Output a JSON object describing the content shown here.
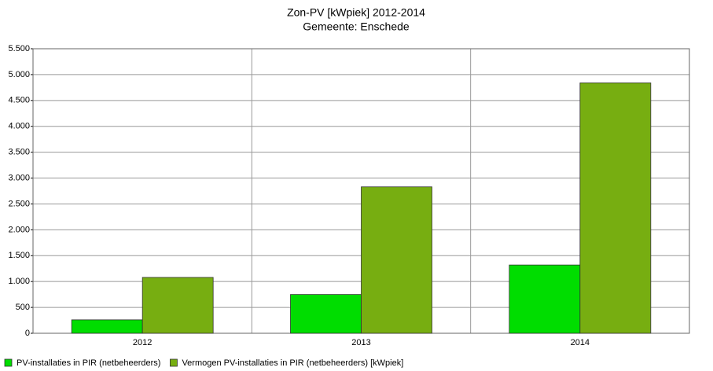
{
  "chart_data": {
    "type": "bar",
    "title": "Zon-PV [kWpiek] 2012-2014",
    "subtitle": "Gemeente: Enschede",
    "categories": [
      "2012",
      "2013",
      "2014"
    ],
    "series": [
      {
        "name": "PV-installaties in PIR (netbeheerders)",
        "color": "#00dd00",
        "values": [
          260,
          750,
          1320
        ]
      },
      {
        "name": "Vermogen PV-installaties in PIR (netbeheerders) [kWpiek]",
        "color": "#77ae11",
        "values": [
          1080,
          2830,
          4840
        ]
      }
    ],
    "ylim": [
      0,
      5500
    ],
    "yticks": [
      0,
      500,
      {
        "value": 1000,
        "label": "1.000"
      },
      {
        "value": 1500,
        "label": "1.500"
      },
      {
        "value": 2000,
        "label": "2.000"
      },
      {
        "value": 2500,
        "label": "2.500"
      },
      {
        "value": 3000,
        "label": "3.000"
      },
      {
        "value": 3500,
        "label": "3.500"
      },
      {
        "value": 4000,
        "label": "4.000"
      },
      {
        "value": 4500,
        "label": "4.500"
      },
      {
        "value": 5000,
        "label": "5.000"
      },
      {
        "value": 5500,
        "label": "5.500"
      }
    ],
    "grid": true,
    "legend": "bottom-left"
  }
}
